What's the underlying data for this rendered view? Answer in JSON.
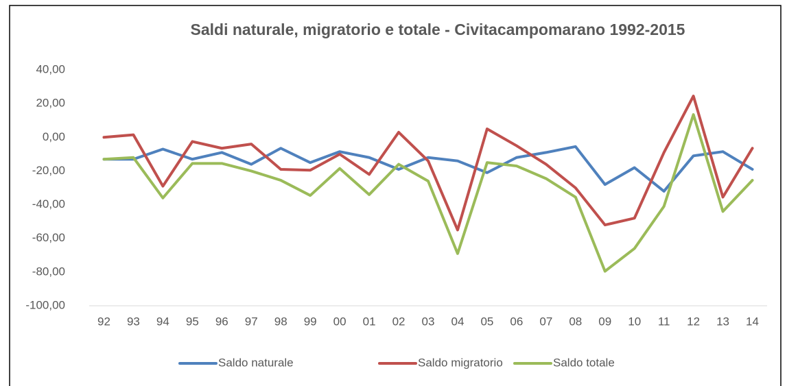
{
  "chart_data": {
    "type": "line",
    "title": "Saldi naturale, migratorio e totale - Civitacampomarano 1992-2015",
    "categories": [
      "92",
      "93",
      "94",
      "95",
      "96",
      "97",
      "98",
      "99",
      "00",
      "01",
      "02",
      "03",
      "04",
      "05",
      "06",
      "07",
      "08",
      "09",
      "10",
      "11",
      "12",
      "13",
      "14"
    ],
    "series": [
      {
        "name": "Saldo naturale",
        "color": "#4f81bd",
        "values": [
          -13,
          -13,
          -7,
          -13,
          -9,
          -16,
          -6.5,
          -15,
          -8.5,
          -12,
          -19,
          -12,
          -14,
          -21,
          -12,
          -9,
          -5.5,
          -28,
          -18,
          -32,
          -11,
          -8.5,
          -19
        ]
      },
      {
        "name": "Saldo migratorio",
        "color": "#c0504d",
        "values": [
          0,
          1.5,
          -29,
          -2.5,
          -6.5,
          -4,
          -19,
          -19.5,
          -10,
          -22,
          3,
          -14,
          -55,
          5,
          -5,
          -16,
          -30,
          -52,
          -48,
          -9,
          24.5,
          -35.5,
          -6.5
        ]
      },
      {
        "name": "Saldo totale",
        "color": "#9bbb59",
        "values": [
          -13,
          -12,
          -36,
          -15.5,
          -15.5,
          -20,
          -25.5,
          -34.5,
          -18.5,
          -34,
          -16,
          -26,
          -69,
          -15,
          -17,
          -24.5,
          -35.5,
          -79.5,
          -66,
          -41,
          13.5,
          -44,
          -25.5
        ]
      }
    ],
    "ylim": [
      -100,
      40
    ],
    "yticks": [
      {
        "value": -100,
        "label": "-100,00"
      },
      {
        "value": -80,
        "label": "-80,00"
      },
      {
        "value": -60,
        "label": "-60,00"
      },
      {
        "value": -40,
        "label": "-40,00"
      },
      {
        "value": -20,
        "label": "-20,00"
      },
      {
        "value": 0,
        "label": "0,00"
      },
      {
        "value": 20,
        "label": "20,00"
      },
      {
        "value": 40,
        "label": "40,00"
      }
    ],
    "legend": "bottom"
  }
}
